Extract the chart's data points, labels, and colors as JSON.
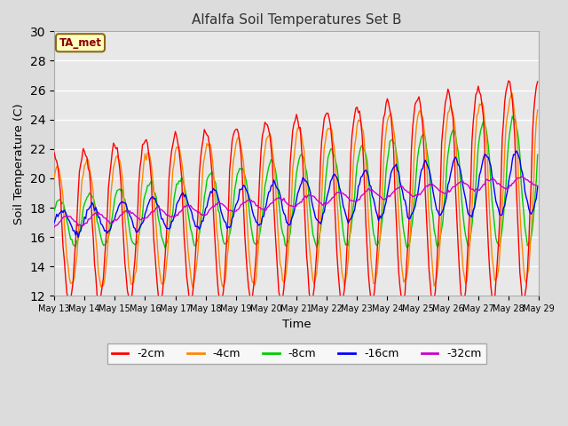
{
  "title": "Alfalfa Soil Temperatures Set B",
  "xlabel": "Time",
  "ylabel": "Soil Temperature (C)",
  "ylim": [
    12,
    30
  ],
  "yticks": [
    12,
    14,
    16,
    18,
    20,
    22,
    24,
    26,
    28,
    30
  ],
  "annotation": "TA_met",
  "colors": {
    "-2cm": "#FF0000",
    "-4cm": "#FF8800",
    "-8cm": "#00CC00",
    "-16cm": "#0000FF",
    "-32cm": "#CC00CC"
  },
  "legend_labels": [
    "-2cm",
    "-4cm",
    "-8cm",
    "-16cm",
    "-32cm"
  ],
  "fig_bg": "#DCDCDC",
  "plot_bg": "#E8E8E8",
  "n_days": 16,
  "start_day": 13,
  "points_per_day": 24
}
